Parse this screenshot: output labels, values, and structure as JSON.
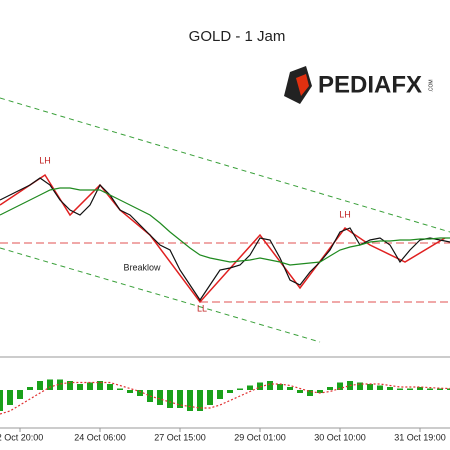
{
  "chart_data": [
    {
      "type": "line",
      "title": "GOLD - 1 Jam",
      "annotations": [
        "LH",
        "LH",
        "Breaklow",
        "LL"
      ],
      "xticks": [
        {
          "value": 2,
          "label": "2 Oct 20:00"
        },
        {
          "value": 10,
          "label": "24 Oct 06:00"
        },
        {
          "value": 18,
          "label": "27 Oct 15:00"
        },
        {
          "value": 26,
          "label": "29 Oct 01:00"
        },
        {
          "value": 34,
          "label": "30 Oct 10:00"
        },
        {
          "value": 42,
          "label": "31 Oct 19:00"
        }
      ],
      "ylim": [
        0,
        71
      ],
      "series": [
        {
          "color": "#111111",
          "values": [
            31,
            32,
            33,
            34,
            35.4,
            34,
            31,
            29,
            28,
            30,
            34,
            32,
            29,
            28,
            26,
            24,
            22,
            21,
            17,
            14,
            11,
            14,
            17,
            17.4,
            18,
            20,
            23.4,
            23,
            19.4,
            15,
            14,
            16.6,
            18.6,
            21,
            24.6,
            25.4,
            22,
            23,
            23.4,
            22,
            18.6,
            21,
            23,
            23.4,
            23,
            22.6
          ]
        },
        {
          "color": "#1f8a1f",
          "values": [
            28,
            29,
            30,
            31,
            32,
            33,
            33.4,
            33.4,
            33,
            33,
            33,
            32,
            31,
            30,
            29,
            28,
            26.4,
            24.6,
            23,
            21.4,
            20,
            19.4,
            19,
            18.6,
            18.8,
            19,
            19.4,
            19,
            18.6,
            18,
            18.2,
            18.4,
            18.6,
            19.8,
            21,
            21.6,
            22,
            22.6,
            22.8,
            22.8,
            23,
            23,
            23.2,
            23.2,
            23.4,
            23.4
          ]
        }
      ]
    },
    {
      "type": "bar",
      "ylim": [
        -10,
        10
      ],
      "series": [
        {
          "color": "#1aa01a",
          "values": [
            -7,
            -5,
            -3,
            1,
            3,
            3.5,
            3.5,
            3,
            2,
            2.5,
            3,
            2,
            0.5,
            -1,
            -2,
            -4,
            -5,
            -6,
            -6,
            -7,
            -7,
            -5,
            -3,
            -1,
            0.5,
            1.5,
            2.5,
            3,
            2,
            1,
            -1,
            -2,
            -1,
            1,
            2.5,
            3,
            2.5,
            2,
            1.5,
            1,
            0.5,
            0.5,
            1,
            0.5,
            0.5,
            0.5
          ]
        },
        {
          "color": "#e03030",
          "values": [
            -8,
            -7,
            -5,
            -3,
            -1,
            1,
            2,
            2.5,
            2.5,
            2.5,
            2.5,
            2.5,
            1.5,
            0.5,
            -0.5,
            -2,
            -3,
            -4,
            -5,
            -5.5,
            -6,
            -6,
            -5,
            -3.5,
            -2,
            -0.5,
            1,
            2,
            2,
            1.5,
            0.5,
            -0.5,
            -1,
            -0.5,
            0.5,
            1.5,
            2,
            2,
            2,
            1.5,
            1,
            1,
            1,
            0.8,
            0.6,
            0.5
          ]
        }
      ]
    }
  ],
  "logo": {
    "name": "PEDIAFX",
    "suffix": ".COM"
  }
}
